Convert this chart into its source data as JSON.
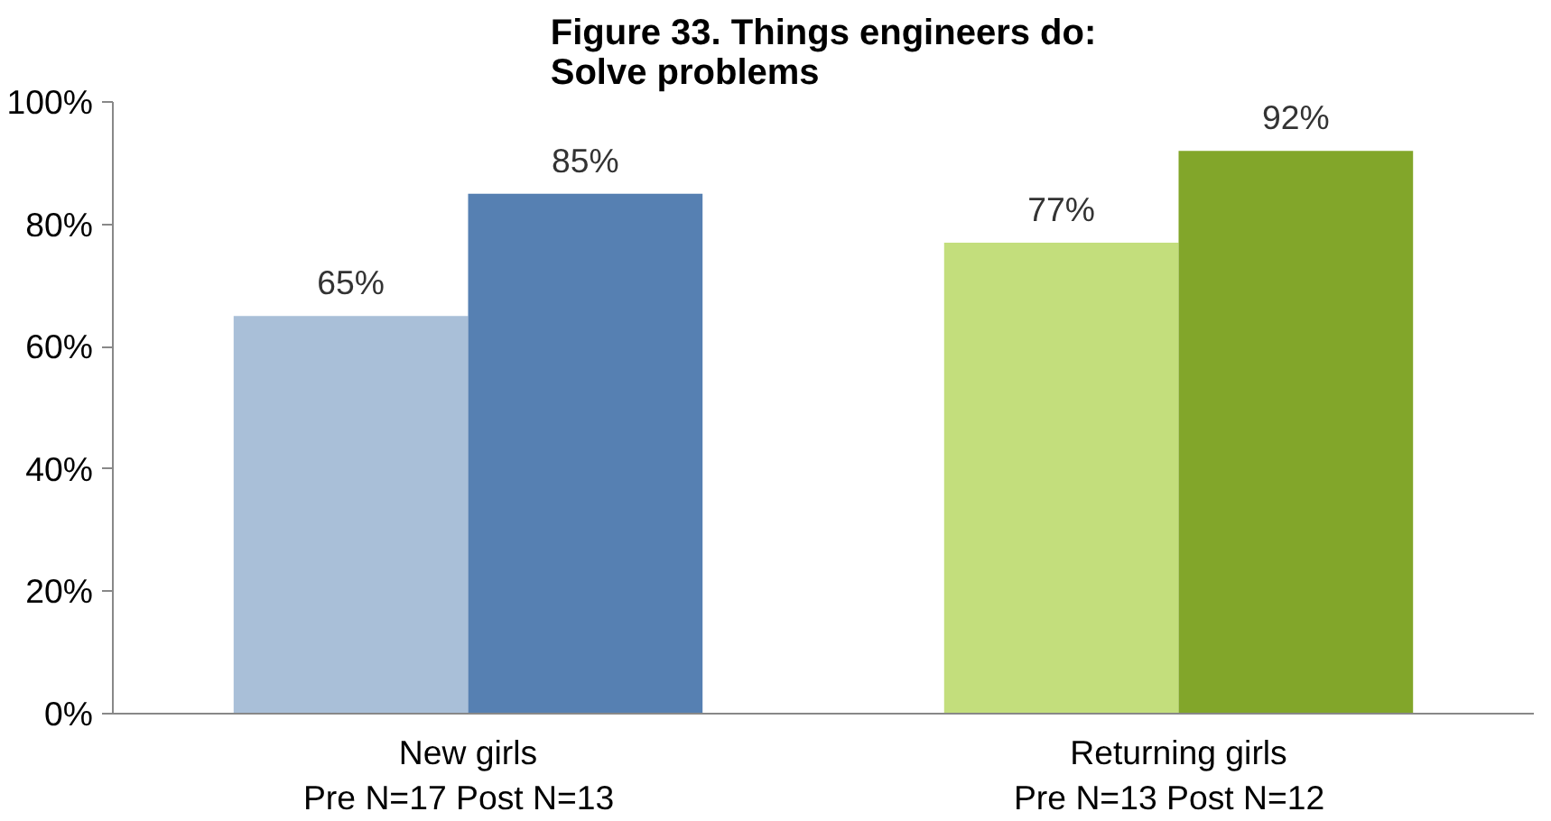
{
  "chart_data": {
    "type": "bar",
    "title": "Figure 33. Things engineers do:\nSolve problems",
    "categories": [
      "New girls\nPre N=17   Post N=13",
      "Returning girls\nPre N=13   Post N=12"
    ],
    "series": [
      {
        "colors": [
          "#a9bfd8",
          "#c3de7c"
        ],
        "values": [
          65,
          77
        ],
        "value_labels": [
          "65%",
          "77%"
        ]
      },
      {
        "colors": [
          "#5680b2",
          "#82a62a"
        ],
        "values": [
          85,
          92
        ],
        "value_labels": [
          "85%",
          "92%"
        ]
      }
    ],
    "ylim": [
      0,
      100
    ],
    "yticks": [
      {
        "value": 0,
        "label": "0%"
      },
      {
        "value": 20,
        "label": "20%"
      },
      {
        "value": 40,
        "label": "40%"
      },
      {
        "value": 60,
        "label": "60%"
      },
      {
        "value": 80,
        "label": "80%"
      },
      {
        "value": 100,
        "label": "100%"
      }
    ],
    "grid": false
  }
}
